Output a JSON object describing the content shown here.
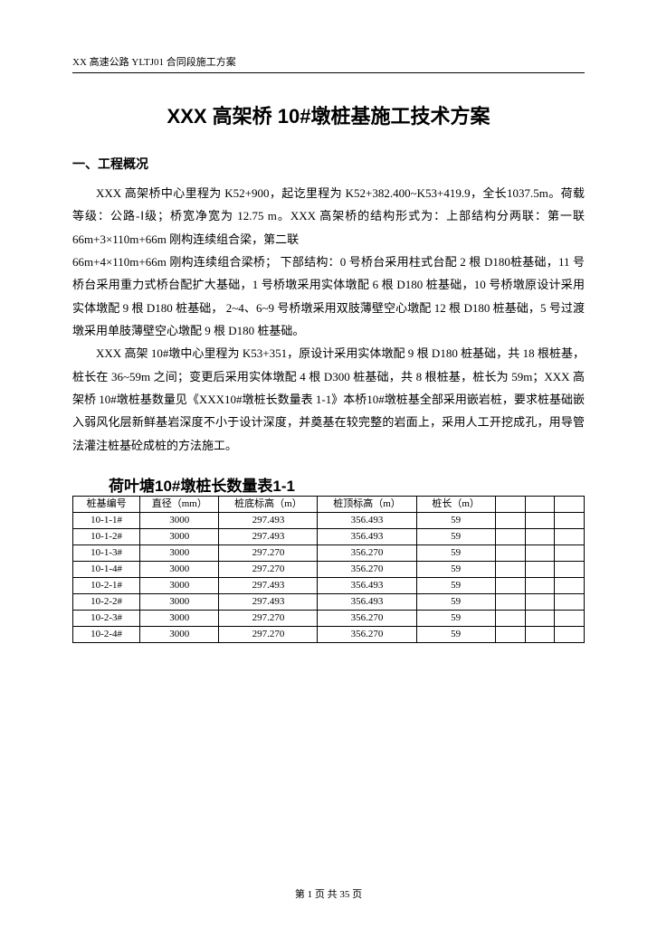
{
  "header": "XX 高速公路 YLTJ01 合同段施工方案",
  "title": "XXX 高架桥 10#墩桩基施工技术方案",
  "section1": {
    "heading": "一、工程概况",
    "p1": "XXX 高架桥中心里程为 K52+900，起讫里程为 K52+382.400~K53+419.9，全长1037.5m。荷载等级：公路-Ⅰ级；桥宽净宽为 12.75 m。XXX 高架桥的结构形式为：上部结构分两联：第一联 66m+3×110m+66m 刚构连续组合梁，第二联",
    "p2": "66m+4×110m+66m 刚构连续组合梁桥； 下部结构：0 号桥台采用柱式台配 2 根 D180桩基础，11 号桥台采用重力式桥台配扩大基础，1 号桥墩采用实体墩配 6 根 D180 桩基础，10 号桥墩原设计采用实体墩配 9 根 D180 桩基础， 2~4、6~9 号桥墩采用双肢薄壁空心墩配 12 根 D180 桩基础，5 号过渡墩采用单肢薄壁空心墩配 9 根 D180 桩基础。",
    "p3": "XXX 高架 10#墩中心里程为 K53+351，原设计采用实体墩配 9 根 D180 桩基础，共 18 根桩基，桩长在 36~59m 之间；变更后采用实体墩配 4 根 D300 桩基础，共 8 根桩基，桩长为 59m；XXX 高架桥 10#墩桩基数量见《XXX10#墩桩长数量表 1-1》本桥10#墩桩基全部采用嵌岩桩，要求桩基础嵌入弱风化层新鲜基岩深度不小于设计深度，并奠基在较完整的岩面上，采用人工开挖成孔，用导管法灌注桩基砼成桩的方法施工。"
  },
  "table": {
    "title": "荷叶塘10#墩桩长数量表1-1",
    "headers": [
      "桩基编号",
      "直径（mm）",
      "桩底标高（m）",
      "桩顶标高（m）",
      "桩长（m）"
    ],
    "rows": [
      [
        "10-1-1#",
        "3000",
        "297.493",
        "356.493",
        "59"
      ],
      [
        "10-1-2#",
        "3000",
        "297.493",
        "356.493",
        "59"
      ],
      [
        "10-1-3#",
        "3000",
        "297.270",
        "356.270",
        "59"
      ],
      [
        "10-1-4#",
        "3000",
        "297.270",
        "356.270",
        "59"
      ],
      [
        "10-2-1#",
        "3000",
        "297.493",
        "356.493",
        "59"
      ],
      [
        "10-2-2#",
        "3000",
        "297.493",
        "356.493",
        "59"
      ],
      [
        "10-2-3#",
        "3000",
        "297.270",
        "356.270",
        "59"
      ],
      [
        "10-2-4#",
        "3000",
        "297.270",
        "356.270",
        "59"
      ]
    ]
  },
  "footer": "第 1 页 共 35 页"
}
